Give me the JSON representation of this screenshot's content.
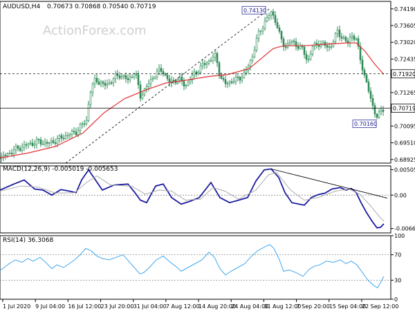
{
  "chart_data": [
    {
      "type": "candlestick",
      "panel": "price",
      "header": {
        "symbol_timeframe": "AUDUSD,H4",
        "ohlc": "0.70673 0.70868 0.70540 0.70719"
      },
      "watermark": "ActionForex.com",
      "ylim": [
        0.688,
        0.7445
      ],
      "y_ticks": [
        0.68925,
        0.6951,
        0.70095,
        0.7068,
        0.71265,
        0.7185,
        0.72435,
        0.7302,
        0.73605,
        0.7419
      ],
      "y_tick_labels": [
        "0.68925",
        "0.69510",
        "0.70095",
        "0.70680",
        "0.71265",
        "0.71850",
        "0.72435",
        "0.73020",
        "0.73605",
        "0.74190"
      ],
      "x_tick_labels": [
        "1 Jul 2020",
        "9 Jul 04:00",
        "16 Jul 12:00",
        "23 Jul 20:00",
        "31 Jul 04:00",
        "7 Aug 12:00",
        "14 Aug 20:00",
        "24 Aug 04:00",
        "31 Aug 12:00",
        "7 Sep 20:00",
        "15 Sep 04:00",
        "22 Sep 12:00"
      ],
      "close_path": [
        [
          0,
          0.6895
        ],
        [
          20,
          0.6925
        ],
        [
          40,
          0.6945
        ],
        [
          55,
          0.6955
        ],
        [
          70,
          0.6948
        ],
        [
          90,
          0.697
        ],
        [
          110,
          0.699
        ],
        [
          125,
          0.703
        ],
        [
          130,
          0.7125
        ],
        [
          138,
          0.7175
        ],
        [
          150,
          0.715
        ],
        [
          160,
          0.7165
        ],
        [
          172,
          0.719
        ],
        [
          185,
          0.717
        ],
        [
          195,
          0.72
        ],
        [
          203,
          0.7115
        ],
        [
          212,
          0.7145
        ],
        [
          225,
          0.7195
        ],
        [
          235,
          0.7205
        ],
        [
          245,
          0.716
        ],
        [
          258,
          0.7175
        ],
        [
          268,
          0.715
        ],
        [
          282,
          0.7195
        ],
        [
          295,
          0.7225
        ],
        [
          312,
          0.7255
        ],
        [
          318,
          0.7185
        ],
        [
          325,
          0.7155
        ],
        [
          333,
          0.7165
        ],
        [
          345,
          0.7175
        ],
        [
          355,
          0.7195
        ],
        [
          365,
          0.7255
        ],
        [
          372,
          0.732
        ],
        [
          383,
          0.7375
        ],
        [
          392,
          0.7405
        ],
        [
          397,
          0.739
        ],
        [
          405,
          0.732
        ],
        [
          412,
          0.7285
        ],
        [
          420,
          0.7305
        ],
        [
          428,
          0.7295
        ],
        [
          438,
          0.7275
        ],
        [
          445,
          0.7235
        ],
        [
          452,
          0.7285
        ],
        [
          460,
          0.73
        ],
        [
          470,
          0.729
        ],
        [
          478,
          0.7285
        ],
        [
          488,
          0.734
        ],
        [
          495,
          0.732
        ],
        [
          502,
          0.7295
        ],
        [
          508,
          0.733
        ],
        [
          515,
          0.731
        ],
        [
          520,
          0.7255
        ],
        [
          526,
          0.7195
        ],
        [
          532,
          0.714
        ],
        [
          537,
          0.7095
        ],
        [
          542,
          0.706
        ],
        [
          546,
          0.7035
        ],
        [
          550,
          0.706
        ],
        [
          555,
          0.7072
        ]
      ],
      "series": [
        {
          "name": "",
          "style": "ma-line",
          "color": "#e03030",
          "path": [
            [
              0,
              0.6898
            ],
            [
              40,
              0.6915
            ],
            [
              80,
              0.6938
            ],
            [
              120,
              0.6985
            ],
            [
              150,
              0.7055
            ],
            [
              180,
              0.7105
            ],
            [
              210,
              0.7135
            ],
            [
              240,
              0.716
            ],
            [
              270,
              0.717
            ],
            [
              300,
              0.7182
            ],
            [
              330,
              0.719
            ],
            [
              360,
              0.721
            ],
            [
              380,
              0.725
            ],
            [
              395,
              0.728
            ],
            [
              410,
              0.729
            ],
            [
              440,
              0.729
            ],
            [
              470,
              0.7295
            ],
            [
              500,
              0.73
            ],
            [
              515,
              0.73
            ],
            [
              528,
              0.727
            ],
            [
              542,
              0.7225
            ],
            [
              555,
              0.719
            ]
          ]
        }
      ],
      "horizontal_levels": [
        {
          "value": 0.7192,
          "label": "0.71920",
          "style": "dashed"
        },
        {
          "value": 0.70719,
          "label": "0.70719",
          "style": "solid"
        }
      ],
      "trendline": {
        "from": [
          95,
          0.688
        ],
        "to": [
          390,
          0.742
        ],
        "style": "dashed"
      },
      "annotations": [
        {
          "label": "0.74130",
          "at": [
            392,
            0.7413
          ]
        },
        {
          "label": "0.70160",
          "at": [
            546,
            0.7016
          ]
        }
      ],
      "candle_color": "#2e8b57"
    },
    {
      "type": "line",
      "panel": "macd",
      "header": "MACD(12,26,9) -0.005019 -0.005653",
      "ylim": [
        -0.0075,
        0.0058
      ],
      "y_ticks": [
        0.005052,
        0.0,
        -0.006629
      ],
      "y_tick_labels": [
        "0.005052",
        "0.00",
        "-0.006629"
      ],
      "series": [
        {
          "name": "",
          "color": "#1a1aa0",
          "path": [
            [
              0,
              0.001
            ],
            [
              20,
              0.0022
            ],
            [
              35,
              0.003
            ],
            [
              50,
              0.0012
            ],
            [
              62,
              0.001
            ],
            [
              75,
              0.0
            ],
            [
              88,
              0.0011
            ],
            [
              100,
              0.0008
            ],
            [
              110,
              0.0005
            ],
            [
              118,
              0.003
            ],
            [
              128,
              0.005
            ],
            [
              138,
              0.003
            ],
            [
              148,
              0.001
            ],
            [
              165,
              0.002
            ],
            [
              185,
              0.0022
            ],
            [
              195,
              0.0005
            ],
            [
              203,
              -0.001
            ],
            [
              212,
              -0.0015
            ],
            [
              225,
              0.0018
            ],
            [
              236,
              0.0022
            ],
            [
              248,
              -0.0005
            ],
            [
              262,
              -0.0018
            ],
            [
              275,
              -0.0012
            ],
            [
              288,
              -0.0005
            ],
            [
              305,
              0.0025
            ],
            [
              318,
              -0.0005
            ],
            [
              332,
              -0.0015
            ],
            [
              345,
              -0.001
            ],
            [
              358,
              -0.0005
            ],
            [
              370,
              0.0028
            ],
            [
              382,
              0.005
            ],
            [
              392,
              0.0052
            ],
            [
              403,
              0.0035
            ],
            [
              412,
              0.0005
            ],
            [
              422,
              -0.0015
            ],
            [
              440,
              -0.002
            ],
            [
              450,
              -0.0005
            ],
            [
              460,
              0.0001
            ],
            [
              470,
              0.0004
            ],
            [
              480,
              0.0012
            ],
            [
              492,
              0.0015
            ],
            [
              500,
              0.001
            ],
            [
              508,
              0.0013
            ],
            [
              515,
              0.0005
            ],
            [
              522,
              -0.0015
            ],
            [
              530,
              -0.0035
            ],
            [
              538,
              -0.0052
            ],
            [
              545,
              -0.0065
            ],
            [
              550,
              -0.0064
            ],
            [
              555,
              -0.0057
            ]
          ]
        },
        {
          "name": "",
          "color": "#aaaaaa",
          "path": [
            [
              0,
              0.0008
            ],
            [
              30,
              0.0018
            ],
            [
              55,
              0.0016
            ],
            [
              80,
              0.0004
            ],
            [
              108,
              0.0005
            ],
            [
              125,
              0.0025
            ],
            [
              140,
              0.0038
            ],
            [
              160,
              0.002
            ],
            [
              190,
              0.0018
            ],
            [
              210,
              0.0002
            ],
            [
              230,
              0.001
            ],
            [
              248,
              0.0008
            ],
            [
              268,
              -0.001
            ],
            [
              290,
              -0.0008
            ],
            [
              308,
              0.0015
            ],
            [
              325,
              0.0008
            ],
            [
              345,
              -0.0008
            ],
            [
              370,
              0.001
            ],
            [
              388,
              0.004
            ],
            [
              400,
              0.0045
            ],
            [
              420,
              0.001
            ],
            [
              440,
              -0.001
            ],
            [
              460,
              -0.0005
            ],
            [
              485,
              0.0008
            ],
            [
              505,
              0.0012
            ],
            [
              520,
              0.0002
            ],
            [
              535,
              -0.002
            ],
            [
              550,
              -0.0045
            ],
            [
              555,
              -0.0052
            ]
          ]
        }
      ],
      "trendline": {
        "from": [
          392,
          0.0052
        ],
        "to": [
          560,
          -0.0006
        ]
      },
      "zero_line": true
    },
    {
      "type": "line",
      "panel": "rsi",
      "header": "RSI(14) 36.3068",
      "ylim": [
        0,
        100
      ],
      "y_ticks": [
        100,
        70,
        30,
        0
      ],
      "y_tick_labels": [
        "100",
        "70",
        "30",
        "0"
      ],
      "guides": [
        70,
        30
      ],
      "series": [
        {
          "name": "",
          "color": "#3fa6ee",
          "path": [
            [
              0,
              45
            ],
            [
              12,
              55
            ],
            [
              22,
              62
            ],
            [
              32,
              58
            ],
            [
              40,
              64
            ],
            [
              48,
              60
            ],
            [
              58,
              66
            ],
            [
              66,
              58
            ],
            [
              75,
              48
            ],
            [
              82,
              54
            ],
            [
              92,
              50
            ],
            [
              100,
              56
            ],
            [
              108,
              62
            ],
            [
              116,
              70
            ],
            [
              124,
              80
            ],
            [
              132,
              76
            ],
            [
              140,
              68
            ],
            [
              148,
              64
            ],
            [
              158,
              62
            ],
            [
              168,
              66
            ],
            [
              178,
              70
            ],
            [
              186,
              60
            ],
            [
              194,
              50
            ],
            [
              202,
              40
            ],
            [
              208,
              42
            ],
            [
              216,
              50
            ],
            [
              226,
              62
            ],
            [
              236,
              68
            ],
            [
              244,
              60
            ],
            [
              254,
              52
            ],
            [
              262,
              44
            ],
            [
              272,
              50
            ],
            [
              282,
              56
            ],
            [
              292,
              62
            ],
            [
              302,
              74
            ],
            [
              310,
              66
            ],
            [
              318,
              48
            ],
            [
              326,
              38
            ],
            [
              334,
              44
            ],
            [
              344,
              50
            ],
            [
              354,
              56
            ],
            [
              362,
              66
            ],
            [
              372,
              76
            ],
            [
              382,
              82
            ],
            [
              390,
              86
            ],
            [
              396,
              80
            ],
            [
              404,
              62
            ],
            [
              410,
              44
            ],
            [
              418,
              46
            ],
            [
              428,
              42
            ],
            [
              438,
              36
            ],
            [
              446,
              46
            ],
            [
              454,
              52
            ],
            [
              462,
              54
            ],
            [
              472,
              60
            ],
            [
              482,
              58
            ],
            [
              492,
              62
            ],
            [
              500,
              56
            ],
            [
              508,
              60
            ],
            [
              516,
              54
            ],
            [
              524,
              42
            ],
            [
              532,
              30
            ],
            [
              540,
              22
            ],
            [
              546,
              18
            ],
            [
              550,
              26
            ],
            [
              555,
              36
            ]
          ]
        }
      ]
    }
  ]
}
